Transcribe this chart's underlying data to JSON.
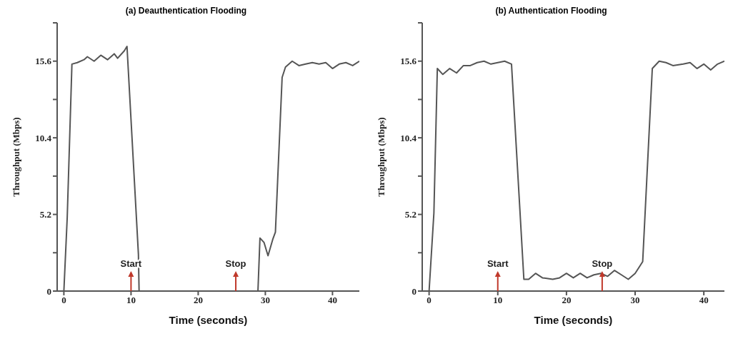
{
  "chart_data": [
    {
      "type": "line",
      "title": "(a) Deauthentication Flooding",
      "xlabel": "Time (seconds)",
      "ylabel": "Throughput (Mbps)",
      "color": "#555555",
      "x": [
        0,
        0.5,
        1.2,
        2,
        3,
        3.5,
        4.5,
        5.5,
        6.5,
        7.5,
        8,
        9,
        9.4,
        11.1,
        11.2,
        15,
        20,
        25,
        28.9,
        29.2,
        29.8,
        30.4,
        31.1,
        31.5,
        32.5,
        33,
        34,
        35,
        36,
        37,
        38,
        39,
        40,
        41,
        42,
        43,
        44
      ],
      "values": [
        0,
        5,
        15.4,
        15.5,
        15.7,
        15.9,
        15.6,
        16,
        15.7,
        16.1,
        15.8,
        16.3,
        16.6,
        2.5,
        0,
        0,
        0,
        0,
        0,
        3.6,
        3.3,
        2.4,
        3.5,
        4,
        14.5,
        15.2,
        15.6,
        15.3,
        15.4,
        15.5,
        15.4,
        15.5,
        15.1,
        15.4,
        15.5,
        15.3,
        15.6
      ],
      "xlim": [
        -1,
        44
      ],
      "ylim": [
        0,
        18.2
      ],
      "xticks": [
        0,
        10,
        20,
        30,
        40
      ],
      "yticks": [
        0,
        {
          "value": 2.6,
          "label": null
        },
        5.2,
        {
          "value": 7.8,
          "label": null
        },
        10.4,
        {
          "value": 13,
          "label": null
        },
        15.6,
        {
          "value": 18.2,
          "label": null
        }
      ],
      "ref_lines": [
        {
          "axis": "x",
          "value": 10,
          "label": "Start",
          "color": "#c0392b"
        },
        {
          "axis": "x",
          "value": 25.6,
          "label": "Stop",
          "color": "#c0392b"
        }
      ]
    },
    {
      "type": "line",
      "title": "(b) Authentication Flooding",
      "xlabel": "Time (seconds)",
      "ylabel": "Throughput (Mbps)",
      "color": "#555555",
      "x": [
        0,
        0.7,
        1.2,
        2,
        3,
        4,
        5,
        6,
        7,
        8,
        9,
        10,
        11,
        12,
        13.8,
        14.5,
        15.5,
        16.5,
        18,
        19,
        20,
        21,
        22,
        23,
        24,
        25,
        26,
        27,
        28,
        29,
        30,
        31.1,
        32.5,
        33.5,
        34.5,
        35.5,
        37,
        38,
        39,
        40,
        41,
        42,
        43
      ],
      "values": [
        0,
        5.3,
        15.1,
        14.7,
        15.1,
        14.8,
        15.3,
        15.3,
        15.5,
        15.6,
        15.4,
        15.5,
        15.6,
        15.4,
        0.8,
        0.8,
        1.2,
        0.9,
        0.8,
        0.9,
        1.2,
        0.9,
        1.2,
        0.9,
        1.1,
        1.2,
        1,
        1.4,
        1.1,
        0.8,
        1.2,
        2,
        15.1,
        15.6,
        15.5,
        15.3,
        15.4,
        15.5,
        15.1,
        15.4,
        15,
        15.4,
        15.6
      ],
      "xlim": [
        -1,
        43
      ],
      "ylim": [
        0,
        18.2
      ],
      "xticks": [
        0,
        10,
        20,
        30,
        40
      ],
      "yticks": [
        0,
        {
          "value": 2.6,
          "label": null
        },
        5.2,
        {
          "value": 7.8,
          "label": null
        },
        10.4,
        {
          "value": 13,
          "label": null
        },
        15.6,
        {
          "value": 18.2,
          "label": null
        }
      ],
      "ref_lines": [
        {
          "axis": "x",
          "value": 10,
          "label": "Start",
          "color": "#c0392b"
        },
        {
          "axis": "x",
          "value": 25.2,
          "label": "Stop",
          "color": "#c0392b"
        }
      ]
    }
  ]
}
